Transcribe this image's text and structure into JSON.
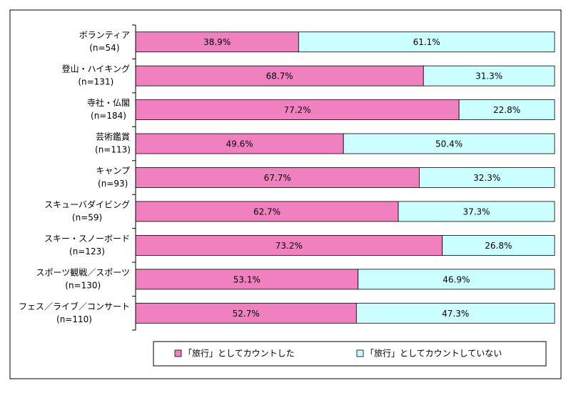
{
  "chart_data": {
    "type": "stacked_bar_horizontal",
    "categories": [
      "ボランティア",
      "登山・ハイキング",
      "寺社・仏閣",
      "芸術鑑賞",
      "キャンプ",
      "スキューバダイビング",
      "スキー・スノーボード",
      "スポーツ観戦／スポーツ",
      "フェス／ライブ／コンサート"
    ],
    "sample_sizes": [
      "(n=54)",
      "(n=131)",
      "(n=184)",
      "(n=113)",
      "(n=93)",
      "(n=59)",
      "(n=123)",
      "(n=130)",
      "(n=110)"
    ],
    "series": [
      {
        "name": "「旅行」としてカウントした",
        "color": "#f080c0",
        "values": [
          38.9,
          68.7,
          77.2,
          49.6,
          67.7,
          62.7,
          73.2,
          53.1,
          52.7
        ],
        "value_labels": [
          "38.9%",
          "68.7%",
          "77.2%",
          "49.6%",
          "67.7%",
          "62.7%",
          "73.2%",
          "53.1%",
          "52.7%"
        ]
      },
      {
        "name": "「旅行」としてカウントしていない",
        "color": "#ccffff",
        "values": [
          61.1,
          31.3,
          22.8,
          50.4,
          32.3,
          37.3,
          26.8,
          46.9,
          47.3
        ],
        "value_labels": [
          "61.1%",
          "31.3%",
          "22.8%",
          "50.4%",
          "32.3%",
          "37.3%",
          "26.8%",
          "46.9%",
          "47.3%"
        ]
      }
    ],
    "xlim": [
      0,
      100
    ]
  }
}
